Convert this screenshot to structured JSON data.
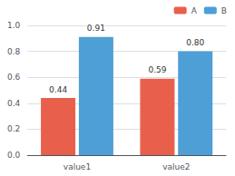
{
  "chart_data": {
    "type": "bar",
    "categories": [
      "value1",
      "value2"
    ],
    "series": [
      {
        "name": "A",
        "color": "#E8604C",
        "values": [
          0.44,
          0.59
        ],
        "value_labels": [
          "0.44",
          "0.59"
        ]
      },
      {
        "name": "B",
        "color": "#4D9FD6",
        "values": [
          0.91,
          0.8
        ],
        "value_labels": [
          "0.91",
          "0.80"
        ]
      }
    ],
    "ylim": [
      0.0,
      1.0
    ],
    "yticks": [
      {
        "value": 0.0,
        "label": "0.0"
      },
      0.2,
      0.4,
      0.6,
      0.8,
      {
        "value": 1.0,
        "label": "1.0"
      }
    ],
    "grid": true,
    "legend": "upper right",
    "data_labels": true
  }
}
